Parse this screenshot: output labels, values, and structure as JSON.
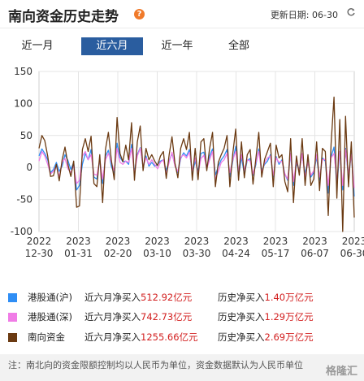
{
  "header": {
    "title": "南向资金历史走势",
    "help_glyph": "?",
    "update_label": "更新日期:",
    "update_date": "06-30"
  },
  "tabs": [
    {
      "label": "近一月",
      "active": false
    },
    {
      "label": "近六月",
      "active": true
    },
    {
      "label": "近一年",
      "active": false
    },
    {
      "label": "全部",
      "active": false
    }
  ],
  "chart_data": {
    "type": "line",
    "ylim": [
      -100,
      150
    ],
    "yticks": [
      150,
      100,
      50,
      0,
      -50,
      -100
    ],
    "x_tick_labels": [
      [
        "2022",
        "12-30"
      ],
      [
        "2023",
        "01-31"
      ],
      [
        "2023",
        "02-20"
      ],
      [
        "2023",
        "03-10"
      ],
      [
        "2023",
        "03-30"
      ],
      [
        "2023",
        "04-24"
      ],
      [
        "2023",
        "05-17"
      ],
      [
        "2023",
        "06-07"
      ],
      [
        "2023",
        "06-30"
      ]
    ],
    "grid": true,
    "series": [
      {
        "name": "港股通(沪)",
        "color": "#2f8ef5",
        "values": [
          18,
          29,
          22,
          12,
          -8,
          -3,
          8,
          -6,
          2,
          20,
          11,
          -3,
          8,
          -35,
          -28,
          5,
          22,
          12,
          28,
          -15,
          -18,
          12,
          -25,
          18,
          27,
          2,
          -10,
          38,
          16,
          9,
          10,
          5,
          36,
          -8,
          20,
          31,
          0,
          18,
          2,
          8,
          2,
          5,
          10,
          12,
          -5,
          10,
          22,
          4,
          -8,
          14,
          23,
          18,
          28,
          -10,
          10,
          -6,
          22,
          24,
          0,
          18,
          29,
          -12,
          2,
          12,
          18,
          28,
          -15,
          10,
          33,
          -14,
          16,
          -10,
          11,
          14,
          -12,
          5,
          29,
          -5,
          5,
          10,
          20,
          -15,
          17,
          5,
          12,
          -10,
          -20,
          22,
          -28,
          6,
          -3,
          20,
          -10,
          11,
          -15,
          -8,
          17,
          -20,
          15,
          10,
          -40,
          17,
          32,
          -30,
          25,
          -35,
          30,
          -15,
          22,
          -45
        ]
      },
      {
        "name": "港股通(深)",
        "color": "#f07ce6",
        "values": [
          10,
          25,
          18,
          5,
          -10,
          -6,
          3,
          -15,
          8,
          14,
          -2,
          -8,
          3,
          -25,
          -20,
          18,
          25,
          12,
          20,
          -10,
          -12,
          12,
          -18,
          12,
          22,
          8,
          -5,
          30,
          8,
          5,
          10,
          8,
          30,
          -10,
          18,
          30,
          2,
          15,
          5,
          12,
          5,
          -2,
          8,
          12,
          -10,
          8,
          24,
          2,
          -6,
          16,
          20,
          15,
          24,
          -5,
          15,
          -10,
          14,
          19,
          -2,
          12,
          25,
          -18,
          -6,
          8,
          12,
          22,
          -8,
          12,
          25,
          -5,
          20,
          -4,
          12,
          10,
          -10,
          8,
          25,
          -8,
          8,
          15,
          18,
          -12,
          15,
          8,
          10,
          -10,
          -18,
          22,
          -22,
          10,
          -6,
          22,
          -15,
          8,
          -12,
          -5,
          20,
          -15,
          12,
          13,
          -28,
          15,
          22,
          -20,
          25,
          -28,
          28,
          -10,
          20,
          -32
        ]
      },
      {
        "name": "南向资金",
        "color": "#6b3a12",
        "values": [
          30,
          50,
          42,
          18,
          -14,
          -13,
          5,
          -21,
          12,
          32,
          5,
          -14,
          10,
          -62,
          -60,
          28,
          45,
          25,
          49,
          -25,
          -30,
          20,
          -55,
          29,
          55,
          12,
          -19,
          78,
          22,
          9,
          35,
          12,
          70,
          -20,
          40,
          65,
          -5,
          30,
          12,
          20,
          10,
          3,
          18,
          25,
          -17,
          20,
          48,
          7,
          -16,
          30,
          45,
          28,
          55,
          -20,
          30,
          -19,
          40,
          45,
          -5,
          30,
          55,
          -30,
          8,
          20,
          30,
          50,
          -30,
          22,
          60,
          -20,
          40,
          -16,
          20,
          28,
          -26,
          15,
          55,
          -15,
          13,
          25,
          38,
          -30,
          35,
          15,
          20,
          -22,
          -38,
          45,
          -55,
          18,
          -12,
          45,
          -28,
          20,
          -28,
          -18,
          40,
          -36,
          30,
          25,
          -75,
          37,
          110,
          -48,
          75,
          -100,
          80,
          -30,
          40,
          -78
        ]
      }
    ]
  },
  "legend": [
    {
      "name": "港股通(沪)",
      "color": "#2f8ef5",
      "net_label": "近六月净买入",
      "net_value": "512.92亿元",
      "hist_label": "历史净买入",
      "hist_value": "1.40万亿元"
    },
    {
      "name": "港股通(深)",
      "color": "#f07ce6",
      "net_label": "近六月净买入",
      "net_value": "742.73亿元",
      "hist_label": "历史净买入",
      "hist_value": "1.29万亿元"
    },
    {
      "name": "南向资金",
      "color": "#6b3a12",
      "net_label": "近六月净买入",
      "net_value": "1255.66亿元",
      "hist_label": "历史净买入",
      "hist_value": "2.69万亿元"
    }
  ],
  "note": {
    "text": "注：南北向的资金限额控制均以人民币为单位，资金数据默认为人民币单位",
    "logo": "格隆汇"
  }
}
